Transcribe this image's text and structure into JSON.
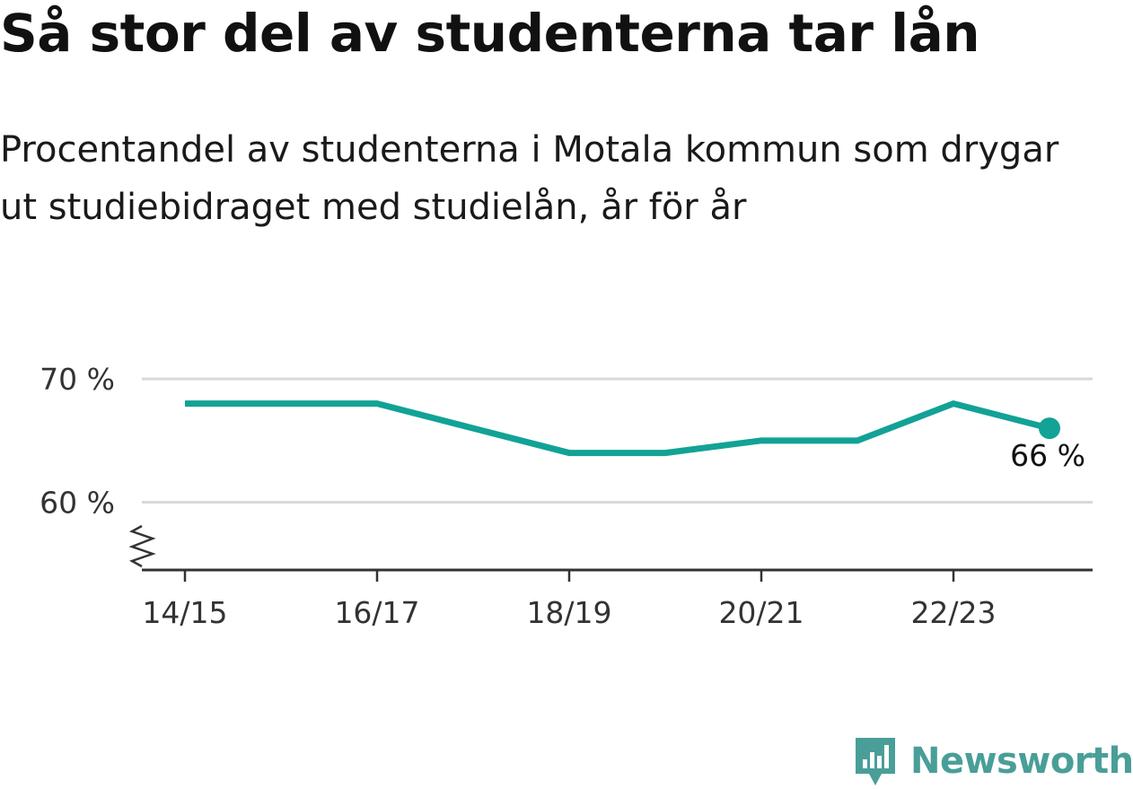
{
  "header": {
    "title": "Så stor del av studenterna tar lån",
    "subtitle": "Procentandel av studenterna i Motala kommun som drygar ut studiebidraget med studielån, år för år"
  },
  "brand": {
    "name": "Newsworthy",
    "color": "#4a9e98"
  },
  "colors": {
    "series": "#12a296",
    "grid": "#d9d9d9",
    "axis": "#333333"
  },
  "chart_data": {
    "type": "line",
    "title": "Så stor del av studenterna tar lån",
    "subtitle": "Procentandel av studenterna i Motala kommun som drygar ut studiebidraget med studielån, år för år",
    "x": [
      "14/15",
      "15/16",
      "16/17",
      "17/18",
      "18/19",
      "19/20",
      "20/21",
      "21/22",
      "22/23",
      "23/24"
    ],
    "xticks": [
      "14/15",
      "16/17",
      "18/19",
      "20/21",
      "22/23"
    ],
    "series": [
      {
        "values": [
          68,
          68,
          68,
          66,
          64,
          64,
          65,
          65,
          68,
          66
        ]
      }
    ],
    "yticks": [
      {
        "value": 60,
        "label": "60 %"
      },
      {
        "value": 70,
        "label": "70 %"
      }
    ],
    "ylim": [
      54.5,
      72
    ],
    "axis_break": true,
    "grid": true,
    "end_label": "66 %",
    "xlabel": "",
    "ylabel": ""
  }
}
